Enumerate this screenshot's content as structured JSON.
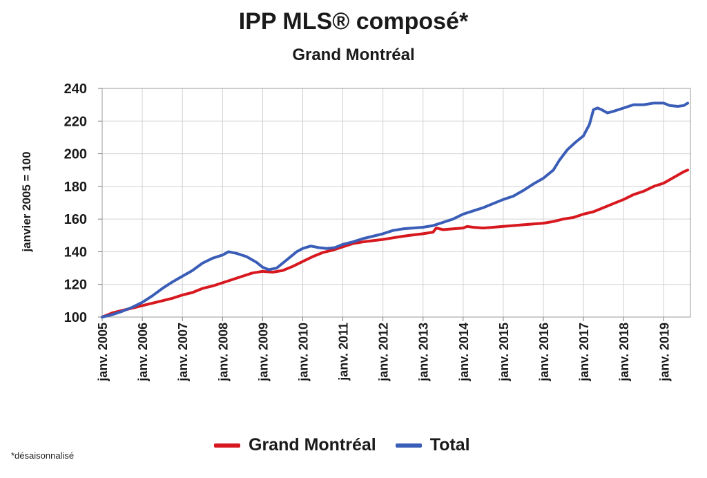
{
  "chart_data": {
    "type": "line",
    "title": "IPP MLS® composé*",
    "subtitle": "Grand Montréal",
    "ylabel": "janvier 2005 = 100",
    "xlabel": "",
    "ylim": [
      100,
      240
    ],
    "yticks": [
      "100",
      "120",
      "140",
      "160",
      "180",
      "200",
      "220",
      "240"
    ],
    "xlim": [
      2005.0,
      2019.667
    ],
    "xticks": [
      "janv. 2005",
      "janv. 2006",
      "janv. 2007",
      "janv. 2008",
      "janv. 2009",
      "janv. 2010",
      "janv. 2011",
      "janv. 2012",
      "janv. 2013",
      "janv. 2014",
      "janv. 2015",
      "janv. 2016",
      "janv. 2017",
      "janv. 2018",
      "janv. 2019"
    ],
    "grid": true,
    "legend_position": "bottom",
    "series": [
      {
        "name": "Grand Montréal",
        "color": "#d7181f",
        "points": [
          [
            2005.0,
            100
          ],
          [
            2005.25,
            102.5
          ],
          [
            2005.5,
            104
          ],
          [
            2005.75,
            105.5
          ],
          [
            2006.0,
            107
          ],
          [
            2006.25,
            108.5
          ],
          [
            2006.5,
            110
          ],
          [
            2006.75,
            111.5
          ],
          [
            2007.0,
            113.5
          ],
          [
            2007.25,
            115
          ],
          [
            2007.5,
            117.5
          ],
          [
            2007.75,
            119
          ],
          [
            2008.0,
            121
          ],
          [
            2008.25,
            123
          ],
          [
            2008.5,
            125
          ],
          [
            2008.75,
            127
          ],
          [
            2009.0,
            128
          ],
          [
            2009.25,
            127.5
          ],
          [
            2009.5,
            128.5
          ],
          [
            2009.75,
            131
          ],
          [
            2010.0,
            134
          ],
          [
            2010.25,
            137
          ],
          [
            2010.5,
            139.5
          ],
          [
            2010.75,
            141
          ],
          [
            2011.0,
            143
          ],
          [
            2011.25,
            145
          ],
          [
            2011.5,
            146
          ],
          [
            2011.75,
            146.8
          ],
          [
            2012.0,
            147.5
          ],
          [
            2012.25,
            148.5
          ],
          [
            2012.5,
            149.5
          ],
          [
            2012.75,
            150.3
          ],
          [
            2013.0,
            151
          ],
          [
            2013.25,
            152
          ],
          [
            2013.33,
            154.5
          ],
          [
            2013.5,
            153.5
          ],
          [
            2013.75,
            154
          ],
          [
            2014.0,
            154.5
          ],
          [
            2014.1,
            155.5
          ],
          [
            2014.25,
            155
          ],
          [
            2014.5,
            154.5
          ],
          [
            2014.75,
            155
          ],
          [
            2015.0,
            155.5
          ],
          [
            2015.25,
            156
          ],
          [
            2015.5,
            156.5
          ],
          [
            2015.75,
            157
          ],
          [
            2016.0,
            157.5
          ],
          [
            2016.25,
            158.5
          ],
          [
            2016.5,
            160
          ],
          [
            2016.75,
            161
          ],
          [
            2017.0,
            163
          ],
          [
            2017.25,
            164.5
          ],
          [
            2017.5,
            167
          ],
          [
            2017.75,
            169.5
          ],
          [
            2018.0,
            172
          ],
          [
            2018.25,
            175
          ],
          [
            2018.5,
            177
          ],
          [
            2018.75,
            180
          ],
          [
            2019.0,
            182
          ],
          [
            2019.25,
            185.5
          ],
          [
            2019.5,
            189
          ],
          [
            2019.6,
            190
          ]
        ]
      },
      {
        "name": "Total",
        "color": "#3a5db7",
        "points": [
          [
            2005.0,
            100
          ],
          [
            2005.25,
            101.5
          ],
          [
            2005.5,
            103.5
          ],
          [
            2005.75,
            106
          ],
          [
            2006.0,
            109
          ],
          [
            2006.25,
            113
          ],
          [
            2006.5,
            117.5
          ],
          [
            2006.75,
            121.5
          ],
          [
            2007.0,
            125
          ],
          [
            2007.25,
            128.5
          ],
          [
            2007.5,
            133
          ],
          [
            2007.75,
            136
          ],
          [
            2008.0,
            138
          ],
          [
            2008.15,
            140
          ],
          [
            2008.35,
            139
          ],
          [
            2008.6,
            137
          ],
          [
            2008.85,
            133.5
          ],
          [
            2009.0,
            130.5
          ],
          [
            2009.15,
            129
          ],
          [
            2009.35,
            130
          ],
          [
            2009.6,
            135
          ],
          [
            2009.85,
            140
          ],
          [
            2010.0,
            142
          ],
          [
            2010.2,
            143.5
          ],
          [
            2010.4,
            142.5
          ],
          [
            2010.6,
            142
          ],
          [
            2010.8,
            142.5
          ],
          [
            2011.0,
            144.5
          ],
          [
            2011.25,
            146
          ],
          [
            2011.5,
            148
          ],
          [
            2011.75,
            149.5
          ],
          [
            2012.0,
            151
          ],
          [
            2012.25,
            153
          ],
          [
            2012.5,
            154
          ],
          [
            2012.75,
            154.5
          ],
          [
            2013.0,
            155
          ],
          [
            2013.25,
            156
          ],
          [
            2013.5,
            158
          ],
          [
            2013.75,
            160
          ],
          [
            2014.0,
            163
          ],
          [
            2014.25,
            165
          ],
          [
            2014.5,
            167
          ],
          [
            2014.75,
            169.5
          ],
          [
            2015.0,
            172
          ],
          [
            2015.25,
            174
          ],
          [
            2015.5,
            177.5
          ],
          [
            2015.75,
            181.5
          ],
          [
            2016.0,
            185
          ],
          [
            2016.25,
            190
          ],
          [
            2016.4,
            196
          ],
          [
            2016.6,
            202.5
          ],
          [
            2016.8,
            207
          ],
          [
            2017.0,
            211
          ],
          [
            2017.15,
            218
          ],
          [
            2017.25,
            227
          ],
          [
            2017.35,
            228
          ],
          [
            2017.45,
            227
          ],
          [
            2017.6,
            225
          ],
          [
            2017.75,
            226
          ],
          [
            2018.0,
            228
          ],
          [
            2018.25,
            230
          ],
          [
            2018.5,
            230
          ],
          [
            2018.75,
            231
          ],
          [
            2019.0,
            231
          ],
          [
            2019.15,
            229.5
          ],
          [
            2019.35,
            229
          ],
          [
            2019.5,
            229.5
          ],
          [
            2019.6,
            231
          ]
        ]
      }
    ]
  },
  "footnote": "*désaisonnalisé"
}
